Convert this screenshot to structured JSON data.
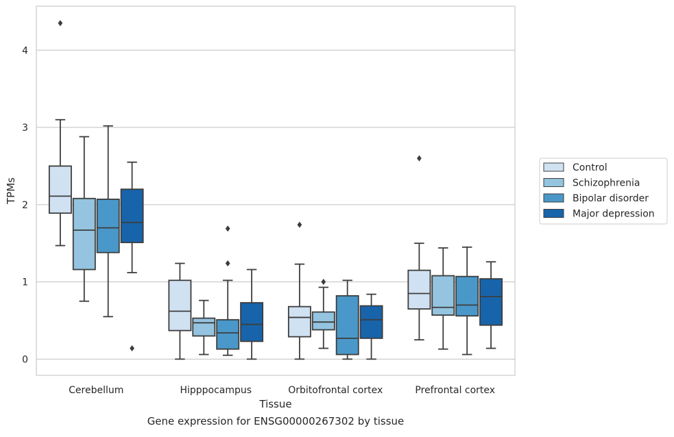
{
  "caption": "Gene expression for ENSG00000267302 by tissue",
  "chart_data": {
    "type": "boxplot",
    "xlabel": "Tissue",
    "ylabel": "TPMs",
    "ylim": [
      -0.21,
      4.57
    ],
    "y_ticks": [
      0,
      1,
      2,
      3,
      4
    ],
    "categories": [
      "Cerebellum",
      "Hipppocampus",
      "Orbitofrontal cortex",
      "Prefrontal cortex"
    ],
    "grid": "horizontal",
    "legend_position": "right",
    "series": [
      {
        "name": "Control",
        "color": "#d0e1f2",
        "boxes": [
          {
            "whisker_low": 1.47,
            "q1": 1.89,
            "median": 2.11,
            "q3": 2.5,
            "whisker_high": 3.1,
            "outliers": [
              4.35
            ]
          },
          {
            "whisker_low": 0.0,
            "q1": 0.37,
            "median": 0.62,
            "q3": 1.02,
            "whisker_high": 1.24,
            "outliers": []
          },
          {
            "whisker_low": 0.0,
            "q1": 0.29,
            "median": 0.54,
            "q3": 0.68,
            "whisker_high": 1.23,
            "outliers": [
              1.74
            ]
          },
          {
            "whisker_low": 0.25,
            "q1": 0.65,
            "median": 0.85,
            "q3": 1.15,
            "whisker_high": 1.5,
            "outliers": [
              2.6
            ]
          }
        ]
      },
      {
        "name": "Schizophrenia",
        "color": "#94c4df",
        "boxes": [
          {
            "whisker_low": 0.75,
            "q1": 1.16,
            "median": 1.67,
            "q3": 2.08,
            "whisker_high": 2.88,
            "outliers": []
          },
          {
            "whisker_low": 0.06,
            "q1": 0.3,
            "median": 0.47,
            "q3": 0.53,
            "whisker_high": 0.76,
            "outliers": []
          },
          {
            "whisker_low": 0.14,
            "q1": 0.38,
            "median": 0.48,
            "q3": 0.61,
            "whisker_high": 0.93,
            "outliers": [
              1.0
            ]
          },
          {
            "whisker_low": 0.13,
            "q1": 0.57,
            "median": 0.67,
            "q3": 1.08,
            "whisker_high": 1.44,
            "outliers": []
          }
        ]
      },
      {
        "name": "Bipolar disorder",
        "color": "#4a98c9",
        "boxes": [
          {
            "whisker_low": 0.55,
            "q1": 1.38,
            "median": 1.7,
            "q3": 2.07,
            "whisker_high": 3.02,
            "outliers": []
          },
          {
            "whisker_low": 0.05,
            "q1": 0.13,
            "median": 0.34,
            "q3": 0.51,
            "whisker_high": 1.02,
            "outliers": [
              1.24,
              1.69
            ]
          },
          {
            "whisker_low": 0.0,
            "q1": 0.06,
            "median": 0.27,
            "q3": 0.82,
            "whisker_high": 1.02,
            "outliers": []
          },
          {
            "whisker_low": 0.06,
            "q1": 0.56,
            "median": 0.7,
            "q3": 1.07,
            "whisker_high": 1.45,
            "outliers": []
          }
        ]
      },
      {
        "name": "Major depression",
        "color": "#1764ab",
        "boxes": [
          {
            "whisker_low": 1.12,
            "q1": 1.51,
            "median": 1.77,
            "q3": 2.2,
            "whisker_high": 2.55,
            "outliers": [
              0.14
            ]
          },
          {
            "whisker_low": 0.0,
            "q1": 0.23,
            "median": 0.45,
            "q3": 0.73,
            "whisker_high": 1.16,
            "outliers": []
          },
          {
            "whisker_low": 0.0,
            "q1": 0.27,
            "median": 0.51,
            "q3": 0.69,
            "whisker_high": 0.84,
            "outliers": []
          },
          {
            "whisker_low": 0.14,
            "q1": 0.44,
            "median": 0.81,
            "q3": 1.04,
            "whisker_high": 1.26,
            "outliers": []
          }
        ]
      }
    ]
  }
}
